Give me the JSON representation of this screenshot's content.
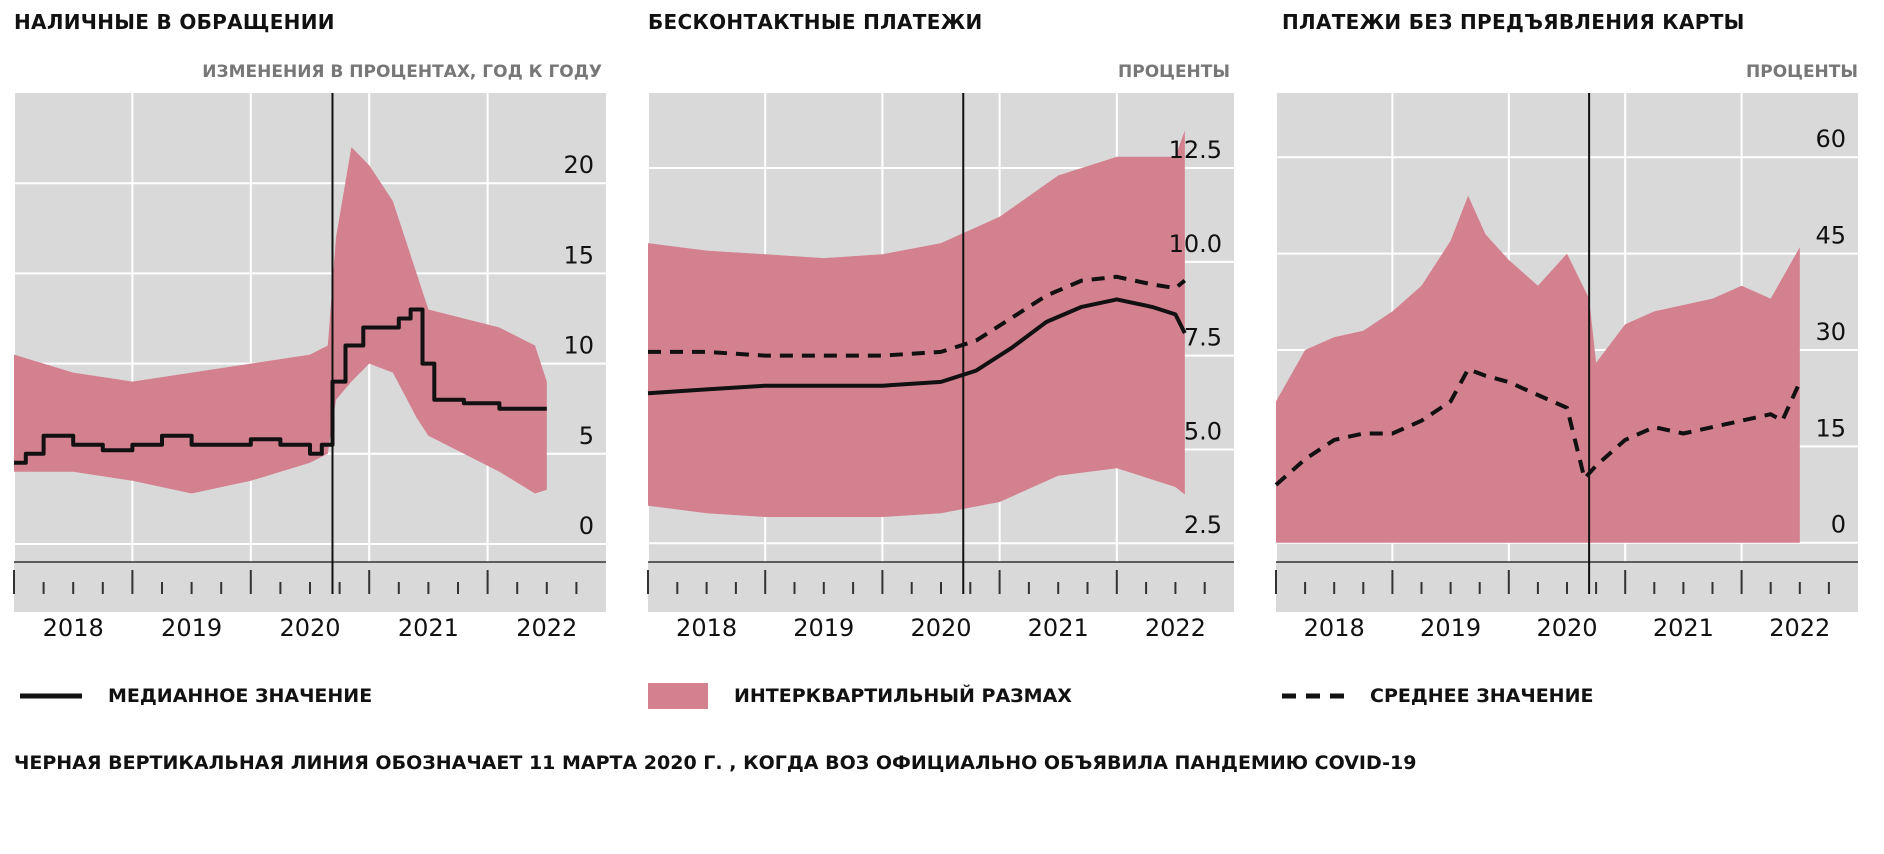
{
  "footnote": "ЧЕРНАЯ ВЕРТИКАЛЬНАЯ ЛИНИЯ ОБОЗНАЧАЕТ 11 МАРТА 2020 Г. , КОГДА ВОЗ ОФИЦИАЛЬНО  ОБЪЯВИЛА ПАНДЕМИЮ COVID-19",
  "legend": {
    "median": "МЕДИАННОЕ ЗНАЧЕНИЕ",
    "iqr": "ИНТЕРКВАРТИЛЬНЫЙ РАЗМАХ",
    "mean": "СРЕДНЕЕ ЗНАЧЕНИЕ"
  },
  "colors": {
    "band": "#d4818f",
    "background": "#d9d9d9",
    "line": "#111111",
    "grid": "#ffffff"
  },
  "chart_data": [
    {
      "type": "area",
      "title": "НАЛИЧНЫЕ В ОБРАЩЕНИИ",
      "ylabel": "ИЗМЕНЕНИЯ В ПРОЦЕНТАХ, ГОД К ГОДУ",
      "xlim": [
        2017.5,
        2022.5
      ],
      "ylim": [
        -1,
        25
      ],
      "yticks": [
        0,
        5,
        10,
        15,
        20
      ],
      "ytick_labels": [
        "0",
        "5",
        "10",
        "15",
        "20"
      ],
      "xticks": [
        2018,
        2019,
        2020,
        2021,
        2022
      ],
      "xtick_labels": [
        "2018",
        "2019",
        "2020",
        "2021",
        "2022"
      ],
      "event_x": 2020.19,
      "band": {
        "x": [
          2017.5,
          2018.0,
          2018.5,
          2019.0,
          2019.5,
          2020.0,
          2020.15,
          2020.22,
          2020.35,
          2020.5,
          2020.7,
          2020.9,
          2021.0,
          2021.3,
          2021.6,
          2021.9,
          2022.0
        ],
        "low": [
          4.0,
          4.0,
          3.5,
          2.8,
          3.5,
          4.5,
          5.0,
          8.0,
          9.0,
          10.0,
          9.5,
          7.0,
          6.0,
          5.0,
          4.0,
          2.8,
          3.0
        ],
        "high": [
          10.5,
          9.5,
          9.0,
          9.5,
          10.0,
          10.5,
          11.0,
          17.0,
          22.0,
          21.0,
          19.0,
          15.0,
          13.0,
          12.5,
          12.0,
          11.0,
          9.0
        ]
      },
      "median": {
        "style": "solid-step",
        "x": [
          2017.5,
          2017.6,
          2017.75,
          2018.0,
          2018.25,
          2018.5,
          2018.75,
          2019.0,
          2019.25,
          2019.5,
          2019.75,
          2020.0,
          2020.1,
          2020.19,
          2020.3,
          2020.45,
          2020.6,
          2020.75,
          2020.85,
          2020.95,
          2021.05,
          2021.3,
          2021.6,
          2021.9,
          2022.0
        ],
        "values": [
          4.5,
          5.0,
          6.0,
          5.5,
          5.2,
          5.5,
          6.0,
          5.5,
          5.5,
          5.8,
          5.5,
          5.0,
          5.5,
          9.0,
          11.0,
          12.0,
          12.0,
          12.5,
          13.0,
          10.0,
          8.0,
          7.8,
          7.5,
          7.5,
          7.5
        ]
      }
    },
    {
      "type": "area",
      "title": "БЕСКОНТАКТНЫЕ ПЛАТЕЖИ",
      "ylabel": "ПРОЦЕНТЫ",
      "xlim": [
        2017.5,
        2022.5
      ],
      "ylim": [
        2.0,
        14.5
      ],
      "yticks": [
        2.5,
        5.0,
        7.5,
        10.0,
        12.5
      ],
      "ytick_labels": [
        "2.5",
        "5.0",
        "7.5",
        "10.0",
        "12.5"
      ],
      "xticks": [
        2018,
        2019,
        2020,
        2021,
        2022
      ],
      "xtick_labels": [
        "2018",
        "2019",
        "2020",
        "2021",
        "2022"
      ],
      "event_x": 2020.19,
      "band": {
        "x": [
          2017.5,
          2018.0,
          2018.5,
          2019.0,
          2019.5,
          2020.0,
          2020.5,
          2021.0,
          2021.5,
          2022.0,
          2022.08
        ],
        "low": [
          3.5,
          3.3,
          3.2,
          3.2,
          3.2,
          3.3,
          3.6,
          4.3,
          4.5,
          4.0,
          3.8
        ],
        "high": [
          10.5,
          10.3,
          10.2,
          10.1,
          10.2,
          10.5,
          11.2,
          12.3,
          12.8,
          12.8,
          13.5
        ]
      },
      "median": {
        "style": "solid",
        "x": [
          2017.5,
          2018.0,
          2018.5,
          2019.0,
          2019.5,
          2020.0,
          2020.3,
          2020.6,
          2020.9,
          2021.2,
          2021.5,
          2021.8,
          2022.0,
          2022.08
        ],
        "values": [
          6.5,
          6.6,
          6.7,
          6.7,
          6.7,
          6.8,
          7.1,
          7.7,
          8.4,
          8.8,
          9.0,
          8.8,
          8.6,
          8.1
        ]
      },
      "mean": {
        "style": "dashed",
        "x": [
          2017.5,
          2018.0,
          2018.5,
          2019.0,
          2019.5,
          2020.0,
          2020.3,
          2020.6,
          2020.9,
          2021.2,
          2021.5,
          2021.8,
          2022.0,
          2022.08
        ],
        "values": [
          7.6,
          7.6,
          7.5,
          7.5,
          7.5,
          7.6,
          7.9,
          8.5,
          9.1,
          9.5,
          9.6,
          9.4,
          9.3,
          9.5
        ]
      }
    },
    {
      "type": "area",
      "title": "ПЛАТЕЖИ БЕЗ ПРЕДЪЯВЛЕНИЯ КАРТЫ",
      "ylabel": "ПРОЦЕНТЫ",
      "xlim": [
        2017.5,
        2022.5
      ],
      "ylim": [
        -3,
        70
      ],
      "yticks": [
        0,
        15,
        30,
        45,
        60
      ],
      "ytick_labels": [
        "0",
        "15",
        "30",
        "45",
        "60"
      ],
      "xticks": [
        2018,
        2019,
        2020,
        2021,
        2022
      ],
      "xtick_labels": [
        "2018",
        "2019",
        "2020",
        "2021",
        "2022"
      ],
      "event_x": 2020.19,
      "band": {
        "x": [
          2017.5,
          2017.75,
          2018.0,
          2018.25,
          2018.5,
          2018.75,
          2019.0,
          2019.15,
          2019.3,
          2019.5,
          2019.75,
          2020.0,
          2020.19,
          2020.25,
          2020.5,
          2020.75,
          2021.0,
          2021.25,
          2021.5,
          2021.75,
          2022.0
        ],
        "low": [
          0,
          0,
          0,
          0,
          0,
          0,
          0,
          0,
          0,
          0,
          0,
          0,
          0,
          0,
          0,
          0,
          0,
          0,
          0,
          0,
          0
        ],
        "high": [
          22,
          30,
          32,
          33,
          36,
          40,
          47,
          54,
          48,
          44,
          40,
          45,
          38,
          28,
          34,
          36,
          37,
          38,
          40,
          38,
          46
        ]
      },
      "mean": {
        "style": "dashed",
        "x": [
          2017.5,
          2017.75,
          2018.0,
          2018.25,
          2018.5,
          2018.75,
          2019.0,
          2019.15,
          2019.3,
          2019.5,
          2019.75,
          2020.0,
          2020.15,
          2020.25,
          2020.5,
          2020.75,
          2021.0,
          2021.25,
          2021.5,
          2021.75,
          2021.85,
          2022.0
        ],
        "values": [
          9,
          13,
          16,
          17,
          17,
          19,
          22,
          27,
          26,
          25,
          23,
          21,
          10,
          12,
          16,
          18,
          17,
          18,
          19,
          20,
          19,
          25
        ]
      }
    }
  ]
}
